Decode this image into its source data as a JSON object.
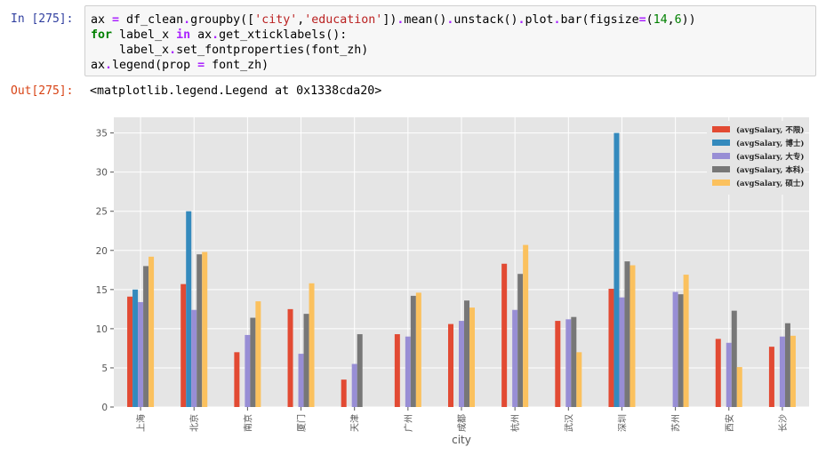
{
  "input_cell": {
    "prompt": "In [275]:",
    "lines": [
      "ax = df_clean.groupby(['city','education']).mean().unstack().plot.bar(figsize=(14,6))",
      "for label_x in ax.get_xticklabels():",
      "    label_x.set_fontproperties(font_zh)",
      "ax.legend(prop = font_zh)"
    ]
  },
  "output_cell": {
    "prompt": "Out[275]:",
    "text": "<matplotlib.legend.Legend at 0x1338cda20>"
  },
  "chart_data": {
    "type": "bar",
    "xlabel": "city",
    "ylabel": "",
    "ylim": [
      0,
      37
    ],
    "yticks": [
      0,
      5,
      10,
      15,
      20,
      25,
      30,
      35
    ],
    "grid": true,
    "legend_position": "top-right",
    "categories": [
      "上海",
      "北京",
      "南京",
      "厦门",
      "天津",
      "广州",
      "成都",
      "杭州",
      "武汉",
      "深圳",
      "苏州",
      "西安",
      "长沙"
    ],
    "series": [
      {
        "name": "(avgSalary, 不限)",
        "color": "#E24A33",
        "values": [
          14.1,
          15.7,
          7.0,
          12.5,
          3.5,
          9.3,
          10.6,
          18.3,
          11.0,
          15.1,
          null,
          8.7,
          7.7
        ]
      },
      {
        "name": "(avgSalary, 博士)",
        "color": "#348ABD",
        "values": [
          15.0,
          25.0,
          null,
          null,
          null,
          null,
          null,
          null,
          null,
          35.0,
          null,
          null,
          null
        ]
      },
      {
        "name": "(avgSalary, 大专)",
        "color": "#988ED5",
        "values": [
          13.4,
          12.4,
          9.2,
          6.8,
          5.5,
          9.0,
          11.0,
          12.4,
          11.2,
          14.0,
          14.7,
          8.2,
          9.0
        ]
      },
      {
        "name": "(avgSalary, 本科)",
        "color": "#777777",
        "values": [
          18.0,
          19.5,
          11.4,
          11.9,
          9.3,
          14.2,
          13.6,
          17.0,
          11.5,
          18.6,
          14.4,
          12.3,
          10.7
        ]
      },
      {
        "name": "(avgSalary, 硕士)",
        "color": "#FBC15E",
        "values": [
          19.2,
          19.8,
          13.5,
          15.8,
          null,
          14.6,
          12.7,
          20.7,
          7.0,
          18.1,
          16.9,
          5.1,
          9.1
        ]
      }
    ]
  }
}
